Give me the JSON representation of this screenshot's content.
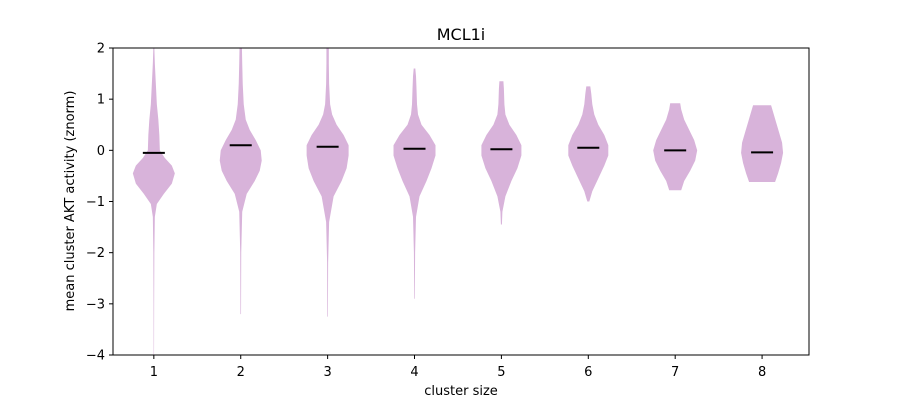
{
  "chart_data": {
    "type": "violin",
    "title": "MCL1i",
    "xlabel": "cluster size",
    "ylabel": "mean cluster AKT activity (znorm)",
    "categories": [
      "1",
      "2",
      "3",
      "4",
      "5",
      "6",
      "7",
      "8"
    ],
    "ylim": [
      -4,
      2
    ],
    "yticks": [
      -4,
      -3,
      -2,
      -1,
      0,
      1,
      2
    ],
    "ytick_labels": [
      "−4",
      "−3",
      "−2",
      "−1",
      "0",
      "1",
      "2"
    ],
    "grid": false,
    "violin_color": "#d8b3da",
    "mean_color": "#000000",
    "series": [
      {
        "category": "1",
        "mean": -0.05,
        "min": -4.0,
        "max": 2.0,
        "profile": [
          [
            -4.0,
            0.2
          ],
          [
            -3.0,
            0.3
          ],
          [
            -2.0,
            0.5
          ],
          [
            -1.3,
            1
          ],
          [
            -1.05,
            3
          ],
          [
            -0.85,
            10
          ],
          [
            -0.65,
            18
          ],
          [
            -0.45,
            21
          ],
          [
            -0.3,
            18
          ],
          [
            -0.15,
            11
          ],
          [
            0.0,
            6
          ],
          [
            0.3,
            5.5
          ],
          [
            0.6,
            4.5
          ],
          [
            0.9,
            3
          ],
          [
            1.3,
            2
          ],
          [
            1.7,
            1
          ],
          [
            2.0,
            0.5
          ]
        ]
      },
      {
        "category": "2",
        "mean": 0.1,
        "min": -3.2,
        "max": 2.0,
        "profile": [
          [
            -3.2,
            0.3
          ],
          [
            -2.0,
            0.5
          ],
          [
            -1.2,
            1.5
          ],
          [
            -0.85,
            6
          ],
          [
            -0.6,
            14
          ],
          [
            -0.4,
            19
          ],
          [
            -0.2,
            21
          ],
          [
            0.0,
            20
          ],
          [
            0.2,
            15
          ],
          [
            0.4,
            9
          ],
          [
            0.6,
            5
          ],
          [
            0.9,
            3
          ],
          [
            1.3,
            2
          ],
          [
            1.7,
            1.5
          ],
          [
            2.0,
            1.2
          ]
        ]
      },
      {
        "category": "3",
        "mean": 0.07,
        "min": -3.25,
        "max": 2.0,
        "profile": [
          [
            -3.25,
            0.3
          ],
          [
            -2.2,
            0.5
          ],
          [
            -1.4,
            1.5
          ],
          [
            -0.9,
            6
          ],
          [
            -0.6,
            14
          ],
          [
            -0.35,
            19
          ],
          [
            -0.1,
            21
          ],
          [
            0.1,
            21
          ],
          [
            0.3,
            16
          ],
          [
            0.5,
            9
          ],
          [
            0.7,
            4.5
          ],
          [
            0.9,
            2.5
          ],
          [
            1.3,
            1.5
          ],
          [
            1.7,
            1.2
          ],
          [
            2.0,
            1.2
          ]
        ]
      },
      {
        "category": "4",
        "mean": 0.03,
        "min": -2.9,
        "max": 1.6,
        "profile": [
          [
            -2.9,
            0.3
          ],
          [
            -2.0,
            0.6
          ],
          [
            -1.3,
            1.5
          ],
          [
            -0.9,
            5
          ],
          [
            -0.6,
            12
          ],
          [
            -0.35,
            17
          ],
          [
            -0.1,
            21
          ],
          [
            0.1,
            21
          ],
          [
            0.3,
            15
          ],
          [
            0.5,
            7
          ],
          [
            0.7,
            3.5
          ],
          [
            0.9,
            2.5
          ],
          [
            1.2,
            2
          ],
          [
            1.45,
            1.5
          ],
          [
            1.6,
            0.8
          ]
        ]
      },
      {
        "category": "5",
        "mean": 0.02,
        "min": -1.45,
        "max": 1.35,
        "profile": [
          [
            -1.45,
            0.5
          ],
          [
            -1.2,
            1
          ],
          [
            -0.9,
            4
          ],
          [
            -0.6,
            10
          ],
          [
            -0.35,
            16
          ],
          [
            -0.1,
            20
          ],
          [
            0.1,
            20
          ],
          [
            0.3,
            15
          ],
          [
            0.5,
            8
          ],
          [
            0.7,
            4
          ],
          [
            0.9,
            3
          ],
          [
            1.2,
            2.5
          ],
          [
            1.35,
            2
          ]
        ]
      },
      {
        "category": "6",
        "mean": 0.05,
        "min": -1.0,
        "max": 1.25,
        "profile": [
          [
            -1.0,
            1
          ],
          [
            -0.8,
            4
          ],
          [
            -0.55,
            10
          ],
          [
            -0.3,
            16
          ],
          [
            -0.1,
            20
          ],
          [
            0.1,
            20
          ],
          [
            0.3,
            16
          ],
          [
            0.5,
            10
          ],
          [
            0.7,
            6
          ],
          [
            0.9,
            4
          ],
          [
            1.1,
            3
          ],
          [
            1.25,
            2
          ]
        ]
      },
      {
        "category": "7",
        "mean": 0.0,
        "min": -0.78,
        "max": 0.92,
        "profile": [
          [
            -0.78,
            6
          ],
          [
            -0.6,
            9
          ],
          [
            -0.4,
            15
          ],
          [
            -0.2,
            20
          ],
          [
            0.0,
            22
          ],
          [
            0.2,
            19
          ],
          [
            0.4,
            14
          ],
          [
            0.6,
            9
          ],
          [
            0.8,
            6
          ],
          [
            0.92,
            5
          ]
        ]
      },
      {
        "category": "8",
        "mean": -0.04,
        "min": -0.62,
        "max": 0.88,
        "profile": [
          [
            -0.62,
            13
          ],
          [
            -0.45,
            16
          ],
          [
            -0.25,
            19
          ],
          [
            -0.05,
            21
          ],
          [
            0.15,
            20
          ],
          [
            0.35,
            17
          ],
          [
            0.55,
            14
          ],
          [
            0.75,
            11
          ],
          [
            0.88,
            9
          ]
        ]
      }
    ]
  }
}
